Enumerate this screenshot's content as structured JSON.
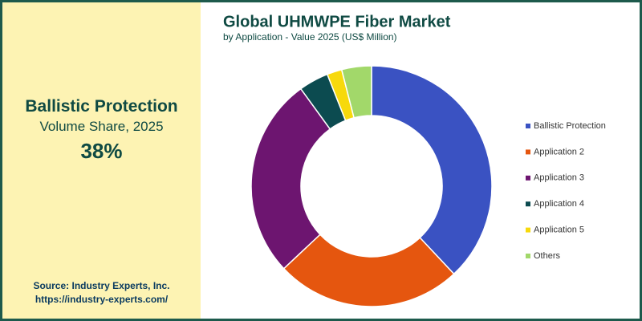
{
  "side_panel": {
    "heading": "Ballistic Protection",
    "subheading": "Volume Share, 2025",
    "highlight": "38%",
    "source": "Source: Industry Experts, Inc.",
    "url": "https://industry-experts.com/"
  },
  "chart_data": {
    "type": "donut",
    "title": "Global UHMWPE Fiber Market",
    "subtitle": "by Application - Value 2025 (US$ Million)",
    "categories": [
      "Ballistic Protection",
      "Application 2",
      "Application 3",
      "Application 4",
      "Application 5",
      "Others"
    ],
    "values": [
      38,
      25,
      27,
      4,
      2,
      4
    ],
    "colors": [
      "#3a52c2",
      "#e5560f",
      "#6d1570",
      "#0c4b50",
      "#f7d90c",
      "#a2d86a"
    ],
    "legend": "right"
  }
}
